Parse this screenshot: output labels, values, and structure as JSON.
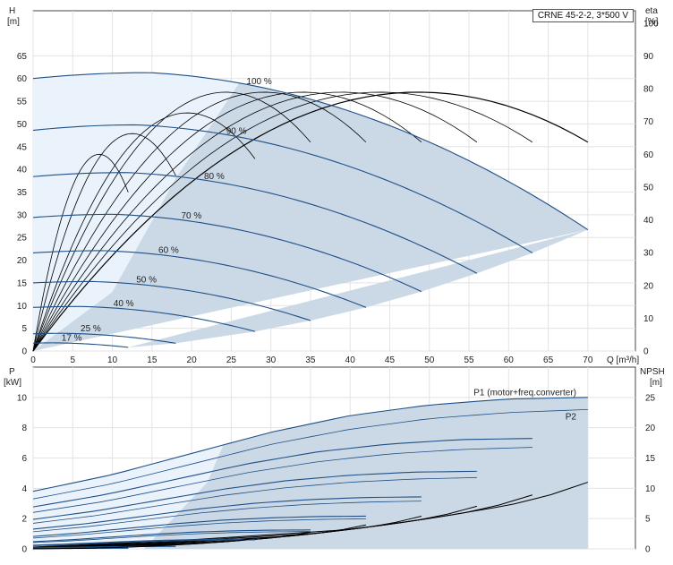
{
  "chart_data": [
    {
      "type": "line",
      "title": "CRNE 45-2-2, 3*500 V",
      "x": [
        0,
        5,
        10,
        15,
        20,
        25,
        30,
        35,
        40,
        45,
        50,
        55,
        60,
        65,
        70
      ],
      "xlabel": "Q [m³/h]",
      "xlim": [
        0,
        76
      ],
      "left_axis": {
        "label_top": "H",
        "label_unit": "[m]",
        "ylim": [
          0,
          70
        ],
        "ticks": [
          0,
          5,
          10,
          15,
          20,
          25,
          30,
          35,
          40,
          45,
          50,
          55,
          60,
          65
        ]
      },
      "right_axis": {
        "label_top": "eta",
        "label_unit": "[%]",
        "ylim": [
          0,
          100
        ],
        "ticks": [
          0,
          10,
          20,
          30,
          40,
          50,
          60,
          70,
          80,
          90,
          100
        ]
      },
      "grid": true,
      "speed_curves": [
        {
          "label": "100 %",
          "q_max": 70,
          "h0": 60,
          "h_peak": 61.3,
          "q_peak": 14.7,
          "h_end": 26.7
        },
        {
          "label": "90 %",
          "q_max": 63,
          "h0": 48.6,
          "h_peak": 49.8,
          "q_peak": 13.2,
          "h_end": 21.6
        },
        {
          "label": "80 %",
          "q_max": 56,
          "h0": 38.4,
          "h_peak": 39.3,
          "q_peak": 11.8,
          "h_end": 17.1
        },
        {
          "label": "70 %",
          "q_max": 49,
          "h0": 29.4,
          "h_peak": 30.1,
          "q_peak": 10.3,
          "h_end": 13.1
        },
        {
          "label": "60 %",
          "q_max": 42,
          "h0": 21.6,
          "h_peak": 22.1,
          "q_peak": 8.8,
          "h_end": 9.6
        },
        {
          "label": "50 %",
          "q_max": 35,
          "h0": 15.0,
          "h_peak": 15.3,
          "q_peak": 7.4,
          "h_end": 6.7
        },
        {
          "label": "40 %",
          "q_max": 28,
          "h0": 9.6,
          "h_peak": 9.8,
          "q_peak": 5.9,
          "h_end": 4.3
        },
        {
          "label": "25 %",
          "q_max": 18,
          "h0": 3.8,
          "h_peak": 3.9,
          "q_peak": 3.7,
          "h_end": 1.7
        },
        {
          "label": "17 %",
          "q_max": 12,
          "h0": 1.7,
          "h_peak": 1.8,
          "q_peak": 2.5,
          "h_end": 0.8
        }
      ],
      "efficiency_peak_pct": 75,
      "operating_region_color": "#cbd9e6",
      "curve_color": "#1f4f86"
    },
    {
      "type": "line",
      "x": [
        0,
        5,
        10,
        15,
        20,
        25,
        30,
        35,
        40,
        45,
        50,
        55,
        60,
        65,
        70
      ],
      "xlabel": "Q [m³/h]",
      "xlim": [
        0,
        76
      ],
      "left_axis": {
        "label_top": "P",
        "label_unit": "[kW]",
        "ylim": [
          0,
          12
        ],
        "ticks": [
          0,
          2,
          4,
          6,
          8,
          10
        ]
      },
      "right_axis": {
        "label_top": "NPSH",
        "label_unit": "[m]",
        "ylim": [
          0,
          30
        ],
        "ticks": [
          0,
          5,
          10,
          15,
          20,
          25
        ]
      },
      "grid": true,
      "power_labels": {
        "p1": "P1 (motor+freq.converter)",
        "p2": "P2"
      },
      "p1_curve": [
        [
          0,
          3.8
        ],
        [
          10,
          4.9
        ],
        [
          20,
          6.3
        ],
        [
          30,
          7.7
        ],
        [
          40,
          8.8
        ],
        [
          50,
          9.5
        ],
        [
          60,
          9.9
        ],
        [
          70,
          10.0
        ]
      ],
      "p2_curve": [
        [
          0,
          3.3
        ],
        [
          10,
          4.3
        ],
        [
          20,
          5.6
        ],
        [
          30,
          6.9
        ],
        [
          40,
          7.9
        ],
        [
          50,
          8.6
        ],
        [
          60,
          9.0
        ],
        [
          70,
          9.2
        ]
      ],
      "npsh_curve": [
        [
          0,
          0.3
        ],
        [
          20,
          1.5
        ],
        [
          40,
          3.2
        ],
        [
          50,
          5.0
        ],
        [
          60,
          7.2
        ],
        [
          65,
          8.8
        ],
        [
          70,
          11.0
        ]
      ]
    }
  ]
}
